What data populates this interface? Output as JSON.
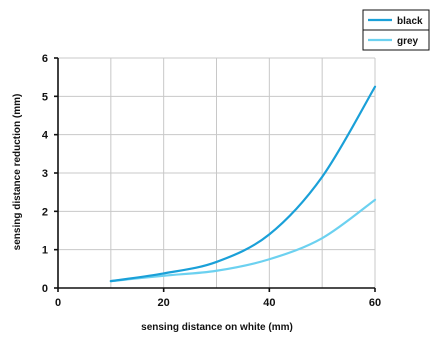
{
  "chart_data": {
    "type": "line",
    "xlabel": "sensing distance on white (mm)",
    "ylabel": "sensing distance reduction (mm)",
    "xlim": [
      0,
      60
    ],
    "ylim": [
      0,
      6
    ],
    "x_ticks": [
      0,
      20,
      40,
      60
    ],
    "y_ticks": [
      0,
      1,
      2,
      3,
      4,
      5,
      6
    ],
    "grid": true,
    "legend_position": "top-right",
    "series": [
      {
        "name": "black",
        "color": "#1aa0d8",
        "x": [
          10,
          20,
          30,
          40,
          50,
          60
        ],
        "y": [
          0.18,
          0.38,
          0.68,
          1.4,
          2.9,
          5.25
        ]
      },
      {
        "name": "grey",
        "color": "#6cd1f0",
        "x": [
          10,
          20,
          30,
          40,
          50,
          60
        ],
        "y": [
          0.18,
          0.32,
          0.45,
          0.75,
          1.3,
          2.3
        ]
      }
    ]
  }
}
